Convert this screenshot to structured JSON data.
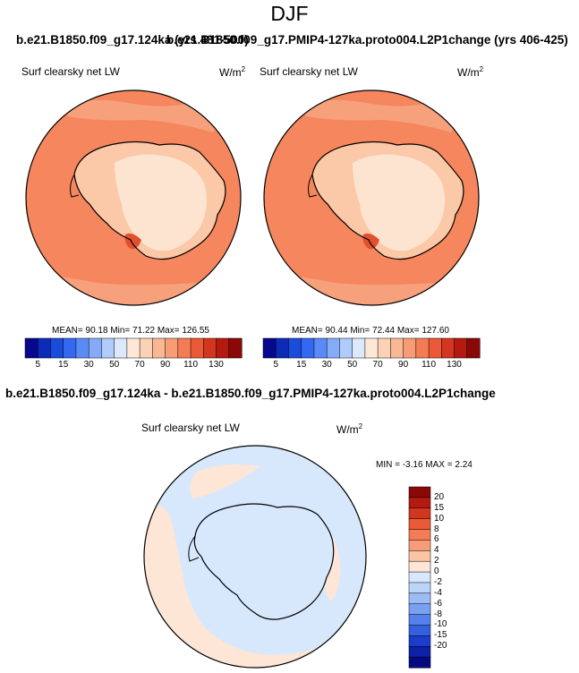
{
  "page": {
    "title": "DJF"
  },
  "top_panels": {
    "left_run_title": "b.e21.B1850.f09_g17.124ka (yrs 481-500)",
    "right_run_title": "b.e21.B1850.f09_g17.PMIP4-127ka.proto004.L2P1change (yrs 406-425)",
    "left": {
      "label": "Surf clearsky net LW",
      "units": "W/m",
      "units_exp": "2",
      "stats": "MEAN=  90.18   Min=  71.22   Max= 126.55"
    },
    "right": {
      "label": "Surf clearsky net LW",
      "units": "W/m",
      "units_exp": "2",
      "stats": "MEAN=  90.44   Min=  72.44   Max= 127.60"
    },
    "colorbar": {
      "colors": [
        "#08088e",
        "#0c2cb8",
        "#1a4cdc",
        "#3468f0",
        "#5a8af6",
        "#84aaf8",
        "#b0ccfa",
        "#dce8fc",
        "#fde8d6",
        "#fbd2b6",
        "#f9b894",
        "#f79c74",
        "#f47c54",
        "#ea5a36",
        "#d2361e",
        "#b41a10",
        "#8a0808"
      ],
      "ticks": [
        "5",
        "15",
        "30",
        "50",
        "70",
        "90",
        "110",
        "130"
      ]
    }
  },
  "bottom_panel": {
    "title": "b.e21.B1850.f09_g17.124ka - b.e21.B1850.f09_g17.PMIP4-127ka.proto004.L2P1change",
    "label": "Surf clearsky net LW",
    "units": "W/m",
    "units_exp": "2",
    "stats": "MIN =  -3.16  MAX =   2.24",
    "colorbar": {
      "colors": [
        "#8a0808",
        "#b41a10",
        "#d2361e",
        "#ea5a36",
        "#f47c54",
        "#f89c78",
        "#fbc4a4",
        "#fde6d6",
        "#d8e8fc",
        "#bad4fa",
        "#9cbcf6",
        "#7aa0f2",
        "#5680ec",
        "#3460e0",
        "#1c3ccc",
        "#0c20a8",
        "#060a82"
      ],
      "labels": [
        "20",
        "15",
        "10",
        "8",
        "6",
        "4",
        "2",
        "0",
        "-2",
        "-4",
        "-6",
        "-8",
        "-10",
        "-15",
        "-20"
      ]
    }
  },
  "colors": {
    "ocean_orange": "#f5865e",
    "ice_pale": "#fde4d0",
    "diff_blue": "#d8e8fc",
    "diff_peach": "#fde6d6"
  }
}
